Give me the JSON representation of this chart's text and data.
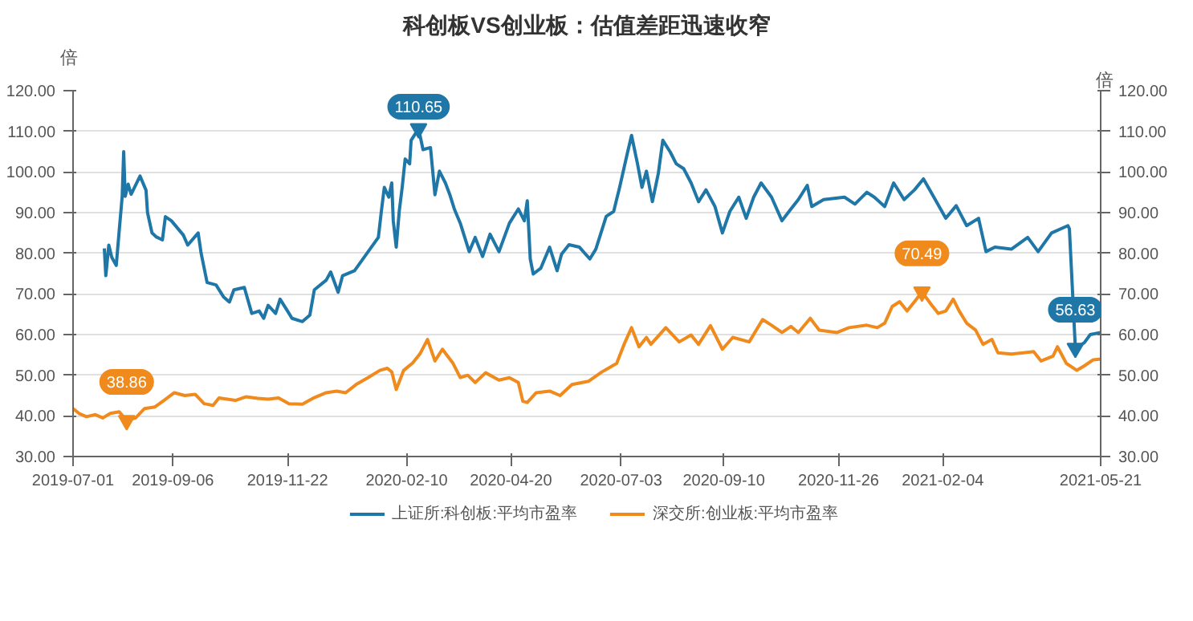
{
  "chart_data": {
    "type": "line",
    "title": "科创板VS创业板：估值差距迅速收窄",
    "ylabel": "倍",
    "y2label": "倍",
    "xlim": [
      "2019-07-01",
      "2021-05-21"
    ],
    "xticks": [
      "2019-07-01",
      "2019-09-06",
      "2019-11-22",
      "2020-02-10",
      "2020-04-20",
      "2020-07-03",
      "2020-09-10",
      "2020-11-26",
      "2021-02-04",
      "2021-05-21"
    ],
    "ylim": [
      30,
      120
    ],
    "yticks": [
      {
        "value": 30,
        "label": "30.00"
      },
      {
        "value": 40,
        "label": "40.00"
      },
      {
        "value": 50,
        "label": "50.00"
      },
      {
        "value": 60,
        "label": "60.00"
      },
      {
        "value": 70,
        "label": "70.00"
      },
      {
        "value": 80,
        "label": "80.00"
      },
      {
        "value": 90,
        "label": "90.00"
      },
      {
        "value": 100,
        "label": "100.00"
      },
      {
        "value": 110,
        "label": "110.00"
      },
      {
        "value": 120,
        "label": "120.00"
      }
    ],
    "y2lim": [
      30,
      120
    ],
    "y2ticks": [
      {
        "value": 30,
        "label": "30.00"
      },
      {
        "value": 40,
        "label": "40.00"
      },
      {
        "value": 50,
        "label": "50.00"
      },
      {
        "value": 60,
        "label": "60.00"
      },
      {
        "value": 70,
        "label": "70.00"
      },
      {
        "value": 80,
        "label": "80.00"
      },
      {
        "value": 90,
        "label": "90.00"
      },
      {
        "value": 100,
        "label": "100.00"
      },
      {
        "value": 110,
        "label": "110.00"
      },
      {
        "value": 120,
        "label": "120.00"
      }
    ],
    "grid": "y",
    "legend": "bottom",
    "line_style": "solid",
    "marker": "none",
    "series": [
      {
        "name": "上证所:科创板:平均市盈率",
        "color": "#1f77a8",
        "x": [
          "2019-07-22",
          "2019-07-23",
          "2019-07-25",
          "2019-07-27",
          "2019-07-30",
          "2019-08-01",
          "2019-08-03",
          "2019-08-04",
          "2019-08-05",
          "2019-08-07",
          "2019-08-09",
          "2019-08-15",
          "2019-08-19",
          "2019-08-20",
          "2019-08-23",
          "2019-08-26",
          "2019-08-30",
          "2019-09-01",
          "2019-09-05",
          "2019-09-13",
          "2019-09-16",
          "2019-09-23",
          "2019-09-25",
          "2019-09-29",
          "2019-10-05",
          "2019-10-10",
          "2019-10-14",
          "2019-10-17",
          "2019-10-24",
          "2019-10-29",
          "2019-11-03",
          "2019-11-06",
          "2019-11-09",
          "2019-11-14",
          "2019-11-17",
          "2019-11-22",
          "2019-11-25",
          "2019-12-02",
          "2019-12-07",
          "2019-12-10",
          "2019-12-18",
          "2019-12-21",
          "2019-12-26",
          "2019-12-29",
          "2020-01-06",
          "2020-01-14",
          "2020-01-22",
          "2020-01-24",
          "2020-01-26",
          "2020-01-29",
          "2020-01-31",
          "2020-02-01",
          "2020-02-03",
          "2020-02-05",
          "2020-02-07",
          "2020-02-09",
          "2020-02-12",
          "2020-02-13",
          "2020-02-18",
          "2020-02-21",
          "2020-02-26",
          "2020-02-29",
          "2020-03-03",
          "2020-03-07",
          "2020-03-10",
          "2020-03-13",
          "2020-03-17",
          "2020-03-23",
          "2020-03-27",
          "2020-04-01",
          "2020-04-06",
          "2020-04-12",
          "2020-04-19",
          "2020-04-25",
          "2020-04-29",
          "2020-05-01",
          "2020-05-03",
          "2020-05-05",
          "2020-05-10",
          "2020-05-16",
          "2020-05-21",
          "2020-05-24",
          "2020-05-29",
          "2020-06-05",
          "2020-06-12",
          "2020-06-16",
          "2020-06-23",
          "2020-06-28",
          "2020-07-02",
          "2020-07-07",
          "2020-07-10",
          "2020-07-14",
          "2020-07-17",
          "2020-07-20",
          "2020-07-24",
          "2020-07-28",
          "2020-07-31",
          "2020-08-05",
          "2020-08-09",
          "2020-08-14",
          "2020-08-19",
          "2020-08-24",
          "2020-08-29",
          "2020-09-04",
          "2020-09-09",
          "2020-09-14",
          "2020-09-20",
          "2020-09-25",
          "2020-09-30",
          "2020-10-05",
          "2020-10-12",
          "2020-10-19",
          "2020-10-25",
          "2020-10-30",
          "2020-11-05",
          "2020-11-08",
          "2020-11-16",
          "2020-11-30",
          "2020-12-07",
          "2020-12-15",
          "2020-12-20",
          "2020-12-27",
          "2021-01-02",
          "2021-01-09",
          "2021-01-16",
          "2021-01-22",
          "2021-01-29",
          "2021-02-06",
          "2021-02-13",
          "2021-02-20",
          "2021-02-28",
          "2021-03-05",
          "2021-03-11",
          "2021-03-22",
          "2021-04-02",
          "2021-04-09",
          "2021-04-18",
          "2021-04-29",
          "2021-04-30",
          "2021-05-04",
          "2021-05-10",
          "2021-05-14",
          "2021-05-21"
        ],
        "values": [
          81.2,
          74.5,
          82,
          79,
          77,
          85.6,
          94,
          105,
          94,
          97,
          94.5,
          99,
          95.5,
          90,
          85,
          84,
          83.3,
          89,
          88,
          84.5,
          82,
          85,
          80,
          72.8,
          72.2,
          69.3,
          68,
          71,
          71.6,
          65.2,
          65.8,
          64,
          67.2,
          65.2,
          68.7,
          65.8,
          64,
          63.2,
          64.8,
          71,
          73.4,
          75.4,
          70.4,
          74.5,
          75.7,
          79.8,
          83.9,
          90.3,
          96.2,
          93.8,
          97.3,
          88,
          81.5,
          90.3,
          96.2,
          103.2,
          102,
          107.8,
          110.65,
          105.5,
          106,
          94.4,
          100.2,
          97.3,
          94.4,
          90.9,
          87.4,
          80.4,
          83.9,
          79.2,
          84.7,
          80.4,
          87.4,
          90.9,
          88,
          92.9,
          78.6,
          74.9,
          76.3,
          81.5,
          75.7,
          79.8,
          82.1,
          81.5,
          78.6,
          81,
          89.1,
          90.3,
          96.2,
          104.3,
          109,
          102,
          96.2,
          100.2,
          92.7,
          99.7,
          107.8,
          104.9,
          102,
          100.8,
          97.3,
          92.7,
          95.6,
          91.5,
          85,
          90.3,
          93.8,
          88.6,
          93.8,
          97.3,
          93.8,
          88,
          90.9,
          93.2,
          96.7,
          91.5,
          93.2,
          93.8,
          92.1,
          95,
          93.8,
          91.5,
          97.3,
          93.2,
          95.6,
          98.3,
          93.8,
          88.6,
          91.7,
          86.8,
          88.6,
          80.4,
          81.5,
          81,
          83.9,
          80.4,
          85,
          86.8,
          86,
          56.63,
          58,
          60,
          60.5
        ]
      },
      {
        "name": "深交所:创业板:平均市盈率",
        "color": "#f08a1c",
        "x": [
          "2019-07-01",
          "2019-07-05",
          "2019-07-10",
          "2019-07-16",
          "2019-07-21",
          "2019-07-26",
          "2019-08-01",
          "2019-08-06",
          "2019-08-12",
          "2019-08-18",
          "2019-08-25",
          "2019-08-31",
          "2019-09-07",
          "2019-09-14",
          "2019-09-21",
          "2019-09-27",
          "2019-10-03",
          "2019-10-07",
          "2019-10-18",
          "2019-10-25",
          "2019-11-02",
          "2019-11-09",
          "2019-11-16",
          "2019-11-23",
          "2019-12-02",
          "2019-12-10",
          "2019-12-18",
          "2019-12-25",
          "2019-12-31",
          "2020-01-07",
          "2020-01-15",
          "2020-01-23",
          "2020-01-28",
          "2020-01-31",
          "2020-02-03",
          "2020-02-08",
          "2020-02-14",
          "2020-02-19",
          "2020-02-24",
          "2020-02-29",
          "2020-03-05",
          "2020-03-12",
          "2020-03-17",
          "2020-03-22",
          "2020-03-27",
          "2020-04-03",
          "2020-04-12",
          "2020-04-19",
          "2020-04-25",
          "2020-04-28",
          "2020-05-01",
          "2020-05-07",
          "2020-05-16",
          "2020-05-23",
          "2020-05-31",
          "2020-06-11",
          "2020-06-20",
          "2020-06-30",
          "2020-07-05",
          "2020-07-10",
          "2020-07-15",
          "2020-07-20",
          "2020-07-23",
          "2020-08-02",
          "2020-08-11",
          "2020-08-19",
          "2020-08-24",
          "2020-09-01",
          "2020-09-09",
          "2020-09-16",
          "2020-09-27",
          "2020-10-06",
          "2020-10-12",
          "2020-10-19",
          "2020-10-25",
          "2020-10-30",
          "2020-11-07",
          "2020-11-13",
          "2020-11-25",
          "2020-12-03",
          "2020-12-15",
          "2020-12-22",
          "2020-12-27",
          "2021-01-01",
          "2021-01-06",
          "2021-01-11",
          "2021-01-16",
          "2021-01-21",
          "2021-01-27",
          "2021-02-01",
          "2021-02-06",
          "2021-02-11",
          "2021-02-15",
          "2021-02-20",
          "2021-02-26",
          "2021-03-03",
          "2021-03-09",
          "2021-03-13",
          "2021-03-22",
          "2021-03-30",
          "2021-04-06",
          "2021-04-11",
          "2021-04-19",
          "2021-04-22",
          "2021-04-28",
          "2021-05-05",
          "2021-05-10",
          "2021-05-16",
          "2021-05-21"
        ],
        "values": [
          41.8,
          40.6,
          39.8,
          40.3,
          39.5,
          40.6,
          41,
          38.86,
          39.5,
          41.8,
          42.2,
          43.8,
          45.7,
          45,
          45.3,
          43,
          42.6,
          44.4,
          43.8,
          44.7,
          44.3,
          44.1,
          44.4,
          43,
          42.9,
          44.5,
          45.7,
          46.1,
          45.7,
          47.7,
          49.4,
          51.2,
          51.7,
          50.8,
          46.5,
          51.2,
          53,
          55.3,
          58.8,
          53.5,
          56.4,
          53,
          49.4,
          50,
          48.2,
          50.6,
          48.8,
          49.4,
          48.2,
          43.6,
          43.3,
          45.7,
          46.1,
          45,
          47.7,
          48.5,
          50.8,
          52.9,
          57.6,
          61.7,
          57,
          59.3,
          57.6,
          61.7,
          58.2,
          59.9,
          57.6,
          62.2,
          56.4,
          59.3,
          58.2,
          63.7,
          62.3,
          60.5,
          62,
          60.5,
          64,
          61.1,
          60.5,
          61.7,
          62.3,
          61.7,
          62.8,
          66.9,
          68.1,
          65.8,
          68.1,
          70.49,
          67.5,
          65.2,
          65.8,
          68.7,
          65.8,
          62.8,
          61.1,
          57.6,
          58.8,
          55.5,
          55.2,
          55.5,
          55.8,
          53.5,
          54.7,
          57,
          52.9,
          51.2,
          52.3,
          53.8,
          54
        ]
      }
    ],
    "annotations": [
      {
        "text": "110.65",
        "x": "2020-02-18",
        "y": 110.65
      },
      {
        "text": "38.86",
        "x": "2019-08-06",
        "y": 38.86
      },
      {
        "text": "70.49",
        "x": "2021-01-21",
        "y": 70.49
      },
      {
        "text": "56.63",
        "x": "2021-05-04",
        "y": 56.63
      }
    ]
  }
}
